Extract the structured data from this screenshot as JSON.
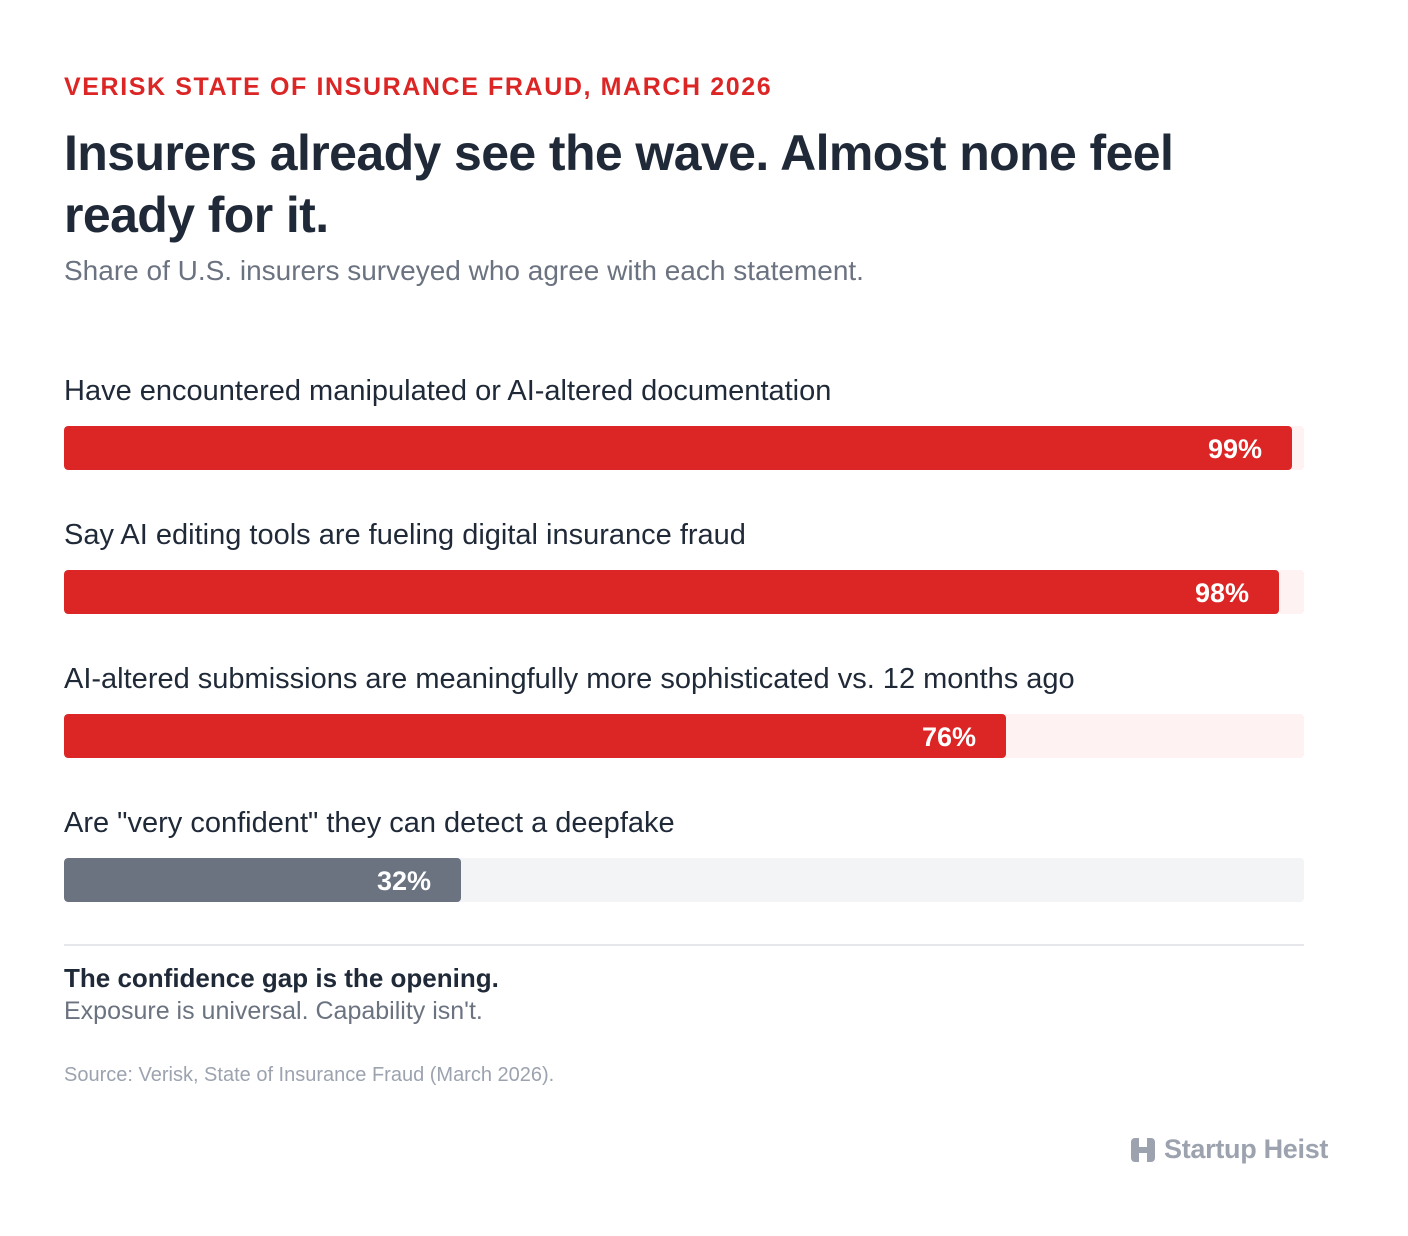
{
  "header": {
    "kicker": "VERISK STATE OF INSURANCE FRAUD, MARCH 2026",
    "title": "Insurers already see the wave. Almost none feel ready for it.",
    "subtitle": "Share of U.S. insurers surveyed who agree with each statement."
  },
  "chart_data": {
    "type": "bar",
    "orientation": "horizontal",
    "xlim": [
      0,
      100
    ],
    "unit": "%",
    "categories": [
      "Have encountered manipulated or AI-altered documentation",
      "Say AI editing tools are fueling digital insurance fraud",
      "AI-altered submissions are meaningfully more sophisticated vs. 12 months ago",
      "Are \"very confident\" they can detect a deepfake"
    ],
    "values": [
      99,
      98,
      76,
      32
    ],
    "value_labels": [
      "99%",
      "98%",
      "76%",
      "32%"
    ],
    "bar_colors": [
      "#dc2626",
      "#dc2626",
      "#dc2626",
      "#6b7280"
    ],
    "track_colors": [
      "#fef2f2",
      "#fef2f2",
      "#fef2f2",
      "#f3f4f6"
    ]
  },
  "footer": {
    "takeaway": "The confidence gap is the opening.",
    "takeaway_sub": "Exposure is universal. Capability isn't.",
    "source": "Source: Verisk, State of Insurance Fraud (March 2026).",
    "brand": "Startup Heist",
    "brand_icon": "building-icon"
  },
  "colors": {
    "accent": "#dc2626",
    "neutral": "#6b7280"
  }
}
